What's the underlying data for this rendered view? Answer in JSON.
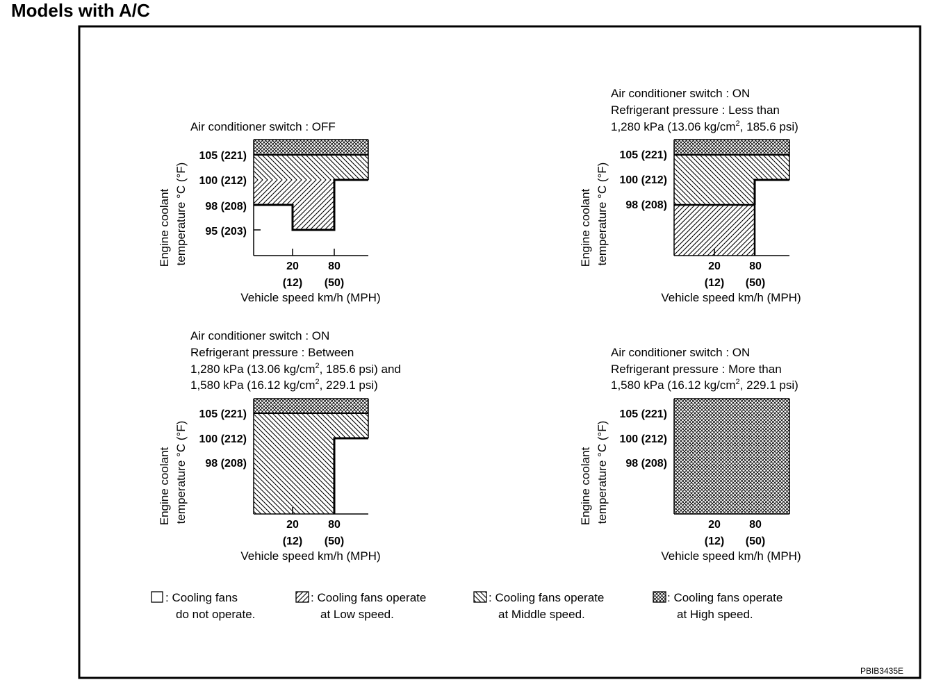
{
  "page": {
    "title": "Models with A/C"
  },
  "figure_code": "PBIB3435E",
  "charts": [
    {
      "caption": [
        "Air conditioner switch : OFF"
      ],
      "y_ticks": [
        "105 (221)",
        "100 (212)",
        "98 (208)",
        "95 (203)"
      ],
      "x_ticks_kmh": [
        "20",
        "80"
      ],
      "x_ticks_mph": [
        "(12)",
        "(50)"
      ],
      "x_label": "Vehicle speed km/h (MPH)",
      "y_label_line1": "Engine coolant",
      "y_label_line2": "temperature °C (°F)",
      "zones": "Below 80 km/h: Low speed from 98 °C (at 0–20 km/h) or 95 °C (at 20–80 km/h) up to 100 °C; Middle speed from 100 °C (below 80 km/h) or 100 °C (above 80 km/h) to 105 °C; High speed above 105 °C."
    },
    {
      "caption": [
        "Air conditioner switch : ON",
        "Refrigerant pressure : Less than",
        "1,280 kPa (13.06 kg/cm",
        "2",
        ", 185.6 psi)"
      ],
      "y_ticks": [
        "105 (221)",
        "100 (212)",
        "98 (208)"
      ],
      "x_ticks_kmh": [
        "20",
        "80"
      ],
      "x_ticks_mph": [
        "(12)",
        "(50)"
      ],
      "x_label": "Vehicle speed km/h (MPH)",
      "y_label_line1": "Engine coolant",
      "y_label_line2": "temperature °C (°F)"
    },
    {
      "caption": [
        "Air conditioner switch : ON",
        "Refrigerant pressure : Between",
        "1,280 kPa (13.06 kg/cm",
        "2",
        ", 185.6 psi) and",
        "1,580 kPa (16.12 kg/cm",
        "2",
        ", 229.1 psi)"
      ],
      "y_ticks": [
        "105 (221)",
        "100 (212)",
        "98 (208)"
      ],
      "x_ticks_kmh": [
        "20",
        "80"
      ],
      "x_ticks_mph": [
        "(12)",
        "(50)"
      ],
      "x_label": "Vehicle speed km/h (MPH)",
      "y_label_line1": "Engine coolant",
      "y_label_line2": "temperature °C (°F)"
    },
    {
      "caption": [
        "Air conditioner switch : ON",
        "Refrigerant pressure : More than",
        "1,580 kPa (16.12 kg/cm",
        "2",
        ", 229.1 psi)"
      ],
      "y_ticks": [
        "105 (221)",
        "100 (212)",
        "98 (208)"
      ],
      "x_ticks_kmh": [
        "20",
        "80"
      ],
      "x_ticks_mph": [
        "(12)",
        "(50)"
      ],
      "x_label": "Vehicle speed km/h (MPH)",
      "y_label_line1": "Engine coolant",
      "y_label_line2": "temperature °C (°F)"
    }
  ],
  "legend": [
    {
      "line1": ": Cooling fans",
      "line2": "do not operate."
    },
    {
      "line1": ": Cooling fans operate",
      "line2": "at Low speed."
    },
    {
      "line1": ": Cooling fans operate",
      "line2": "at Middle speed."
    },
    {
      "line1": ": Cooling fans operate",
      "line2": "at High speed."
    }
  ]
}
